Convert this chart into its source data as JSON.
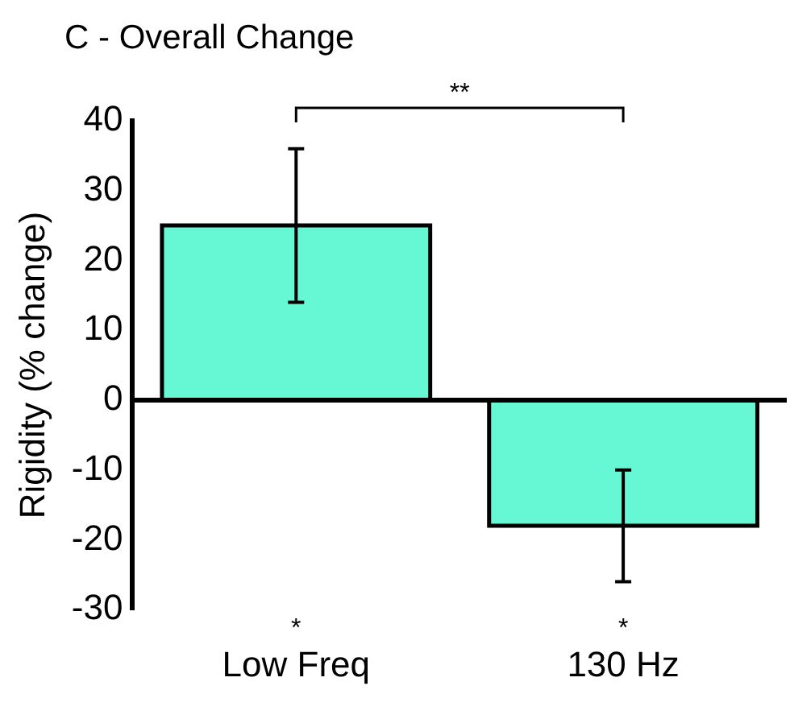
{
  "chart_data": {
    "type": "bar",
    "title": "C -  Overall Change",
    "ylabel": "Rigidity (% change)",
    "categories": [
      "Low Freq",
      "130 Hz"
    ],
    "values": [
      25,
      -18
    ],
    "color": "#66f8d4",
    "errors": [
      [
        14,
        36
      ],
      [
        -26,
        -10
      ]
    ],
    "ylim": [
      -30,
      40
    ],
    "yticks": [
      -30,
      -20,
      -10,
      0,
      10,
      20,
      30,
      40
    ],
    "annotations": [
      "**",
      "*",
      "*"
    ]
  }
}
